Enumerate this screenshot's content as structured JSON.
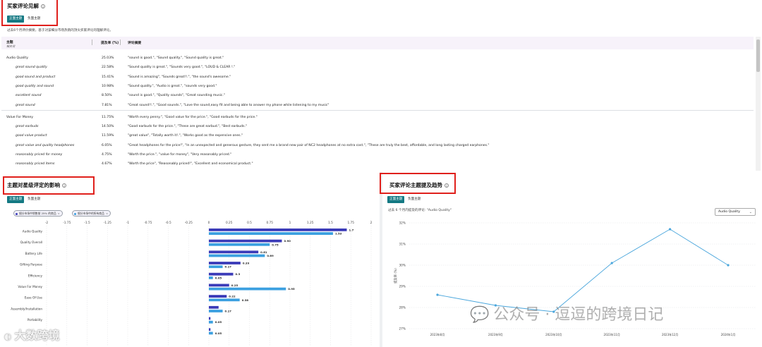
{
  "review_insights": {
    "title": "买家评论见解",
    "tabs": [
      "正面主题",
      "负面主题"
    ],
    "active_tab": 0,
    "description": "过去6个月评价摘要，基于对该细分市场热销的顶尖买家评论的理解评论。",
    "columns": {
      "topic": "主题",
      "topic_sub": "相关词",
      "rate": "提及率 (%)",
      "excerpt": "评论摘要"
    },
    "groups": [
      {
        "topic": "Audio Quality",
        "rate": "25.03%",
        "excerpt": "\"sound is good.\", \"Sound quality.\", \"Sound quality is great.\"",
        "subs": [
          {
            "topic": "great sound quality",
            "rate": "22.58%",
            "excerpt": "\"Sound quality is great.\", \"Sounds very good.\", \"LOUD & CLEAR !.\""
          },
          {
            "topic": "good sound and product",
            "rate": "15.41%",
            "excerpt": "\"Sound is amazing\", \"Sounds great!!.\", \"the sound's awesome.\""
          },
          {
            "topic": "good quality and sound",
            "rate": "10.98%",
            "excerpt": "\"Sound quality.\", \"Audio is great.\", \"sounds very good.\""
          },
          {
            "topic": "excellent sound",
            "rate": "8.50%",
            "excerpt": "\"sound is good.\", \"Quality sounds\", \"Great sounding music.\""
          },
          {
            "topic": "great sound",
            "rate": "7.81%",
            "excerpt": "\"Great sound!!.\", \"Good sounds.\", \"Love the sound,easy fit and being able to answer my phone while listening to my music\""
          }
        ]
      },
      {
        "topic": "Value For Money",
        "rate": "11.75%",
        "excerpt": "\"Worth every penny.\", \"Good value for the price.\", \"Good earbuds for the price.\"",
        "subs": [
          {
            "topic": "great earbuds",
            "rate": "14.50%",
            "excerpt": "\"Good earbuds for the price.\", \"These are great earbud.\", \"Best earbuds.\""
          },
          {
            "topic": "good value product",
            "rate": "11.59%",
            "excerpt": "\"great value\", \"Totally worth it!.\", \"Works good as the expensive ones.\""
          },
          {
            "topic": "great value and quality headphones",
            "rate": "6.05%",
            "excerpt": "\"Great headphones for the price!\", \"In an unexpected and generous gesture, they sent me a brand new pair of NC2 headphones at no extra cost.\", \"These are truly the best, affordable, and long lasting charged earphones.\""
          },
          {
            "topic": "reasonably priced for money",
            "rate": "4.75%",
            "excerpt": "\"Worth the price.\", \"value for money\", \"Very reasonably priced.\""
          },
          {
            "topic": "reasonably priced items",
            "rate": "4.67%",
            "excerpt": "\"Worth the price\", \"Reasonably priced!\", \"Excellent and economical product.\""
          }
        ]
      }
    ]
  },
  "impact": {
    "title": "主题对星级评定的影响",
    "tabs": [
      "正面主题",
      "负面主题"
    ],
    "legend": [
      {
        "label": "细分市场中销售前 25% 的商品",
        "color": "#3b3bb8"
      },
      {
        "label": "细分市场中的所有商品",
        "color": "#3ba0e0"
      }
    ]
  },
  "trend": {
    "title": "买家评论主题提及趋势",
    "tabs": [
      "正面主题",
      "负面主题"
    ],
    "subtitle": "过去 6 个月内提及的评论: \"Audio Quality\"",
    "select_value": "Audio Quality",
    "ylabel": "提及率 (%)"
  },
  "watermark": {
    "left": "大数跨境",
    "right": "公众号 · 逗逗的跨境日记"
  },
  "chart_data": [
    {
      "type": "bar",
      "orientation": "horizontal",
      "categories": [
        "Audio Quality",
        "Quality Overall",
        "Battery Life",
        "Gifting Purpose",
        "Efficiency",
        "Value For Money",
        "Ease Of Use",
        "Assembly/Installation",
        "Portability",
        ""
      ],
      "series": [
        {
          "name": "细分市场中销售前 25% 的商品",
          "values": [
            1.7,
            0.9,
            0.61,
            0.39,
            0.3,
            0.25,
            0.22,
            0.12,
            0.02,
            0.02
          ],
          "labels": [
            "1.7",
            "0.90",
            "0.61",
            "0.39",
            "0.3",
            "0.25",
            "0.22",
            "",
            "",
            ""
          ]
        },
        {
          "name": "细分市场中的所有商品",
          "values": [
            1.53,
            0.75,
            0.69,
            0.17,
            0.05,
            0.95,
            0.38,
            0.17,
            0.05,
            0.05
          ],
          "labels": [
            "1.53",
            "0.75",
            "0.69",
            "0.17",
            "0.05",
            "0.95",
            "0.38",
            "0.17",
            "0.05",
            "0.05"
          ]
        }
      ],
      "xticks": [
        "-2",
        "-1.75",
        "-1.5",
        "-1.25",
        "-1",
        "-0.75",
        "-0.5",
        "-0.25",
        "0",
        "0.25",
        "0.5",
        "0.75",
        "1",
        "1.25",
        "1.5",
        "1.75",
        "2"
      ],
      "xlim": [
        -2,
        2
      ]
    },
    {
      "type": "line",
      "x": [
        "2023年8月",
        "2023年9月",
        "2023年10月",
        "2023年11月",
        "2023年12月",
        "2024年1月"
      ],
      "yticks": [
        "32%",
        "31%",
        "30%",
        "29%",
        "28%",
        "27%"
      ],
      "ylim": [
        27,
        32
      ],
      "values": [
        28.6,
        28.1,
        27.8,
        30.1,
        31.7,
        30.0
      ],
      "ylabel": "提及率 (%)"
    }
  ]
}
